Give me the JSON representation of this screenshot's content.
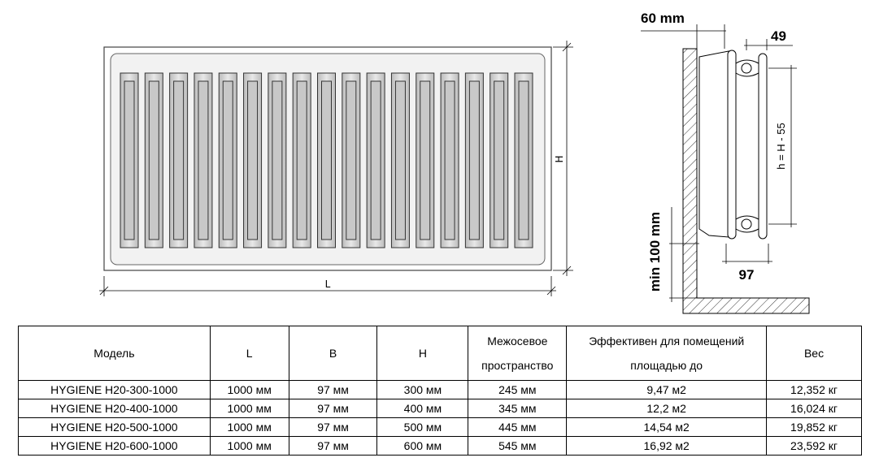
{
  "front_view": {
    "slot_count": 17,
    "dim_height_label": "H",
    "dim_length_label": "L"
  },
  "side_view": {
    "wall_gap_label": "60 mm",
    "depth_top_label": "49",
    "center_distance_label": "h = H - 55",
    "depth_label": "97",
    "floor_gap_label": "min 100 mm"
  },
  "table": {
    "headers": [
      "Модель",
      "L",
      "B",
      "H",
      "Межосевое пространство",
      "Эффективен для помещений площадью до",
      "Вес"
    ],
    "rows": [
      [
        "HYGIENE H20-300-1000",
        "1000 мм",
        "97 мм",
        "300 мм",
        "245 мм",
        "9,47 м2",
        "12,352 кг"
      ],
      [
        "HYGIENE H20-400-1000",
        "1000 мм",
        "97 мм",
        "400 мм",
        "345 мм",
        "12,2 м2",
        "16,024 кг"
      ],
      [
        "HYGIENE H20-500-1000",
        "1000 мм",
        "97 мм",
        "500 мм",
        "445 мм",
        "14,54 м2",
        "19,852 кг"
      ],
      [
        "HYGIENE H20-600-1000",
        "1000 мм",
        "97 мм",
        "600 мм",
        "545 мм",
        "16,92 м2",
        "23,592 кг"
      ]
    ]
  }
}
